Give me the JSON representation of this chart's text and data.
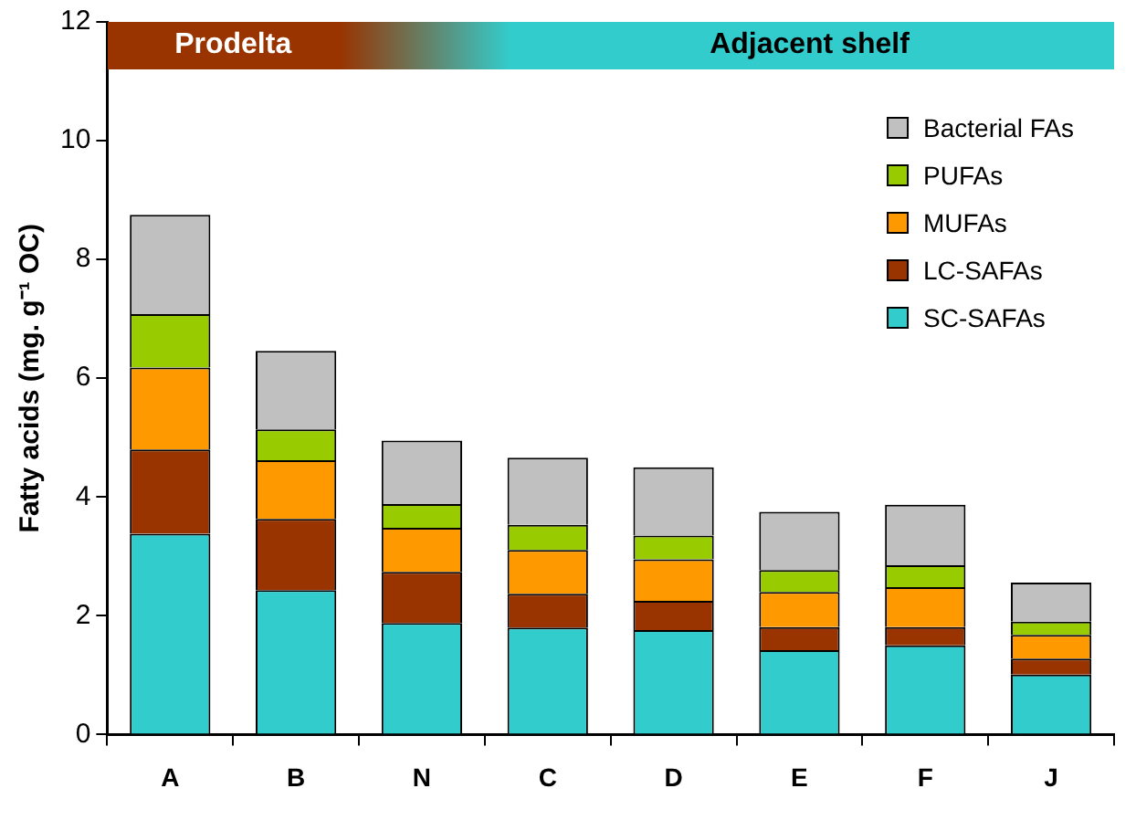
{
  "chart_data": {
    "type": "bar",
    "stacked": true,
    "ylabel": "Fatty acids (mg. g⁻¹ OC)",
    "categories": [
      "A",
      "B",
      "N",
      "C",
      "D",
      "E",
      "F",
      "J"
    ],
    "series": [
      {
        "name": "SC-SAFAs",
        "color": "#33cccc",
        "values": [
          3.38,
          2.43,
          1.88,
          1.8,
          1.76,
          1.42,
          1.5,
          1.01
        ]
      },
      {
        "name": "LC-SAFAs",
        "color": "#993300",
        "values": [
          1.42,
          1.2,
          0.86,
          0.57,
          0.49,
          0.39,
          0.31,
          0.27
        ]
      },
      {
        "name": "MUFAs",
        "color": "#ff9900",
        "values": [
          1.38,
          0.99,
          0.74,
          0.74,
          0.7,
          0.59,
          0.67,
          0.4
        ]
      },
      {
        "name": "PUFAs",
        "color": "#99cc00",
        "values": [
          0.9,
          0.52,
          0.4,
          0.42,
          0.4,
          0.37,
          0.37,
          0.22
        ]
      },
      {
        "name": "Bacterial FAs",
        "color": "#c0c0c0",
        "values": [
          1.67,
          1.32,
          1.07,
          1.13,
          1.15,
          0.98,
          1.02,
          0.66
        ]
      }
    ],
    "ylim": [
      0,
      12
    ],
    "yticks": [
      0,
      2,
      4,
      6,
      8,
      10,
      12
    ],
    "grid": false,
    "legend": "top right",
    "annotations": [
      "Prodelta",
      "Adjacent shelf"
    ]
  }
}
